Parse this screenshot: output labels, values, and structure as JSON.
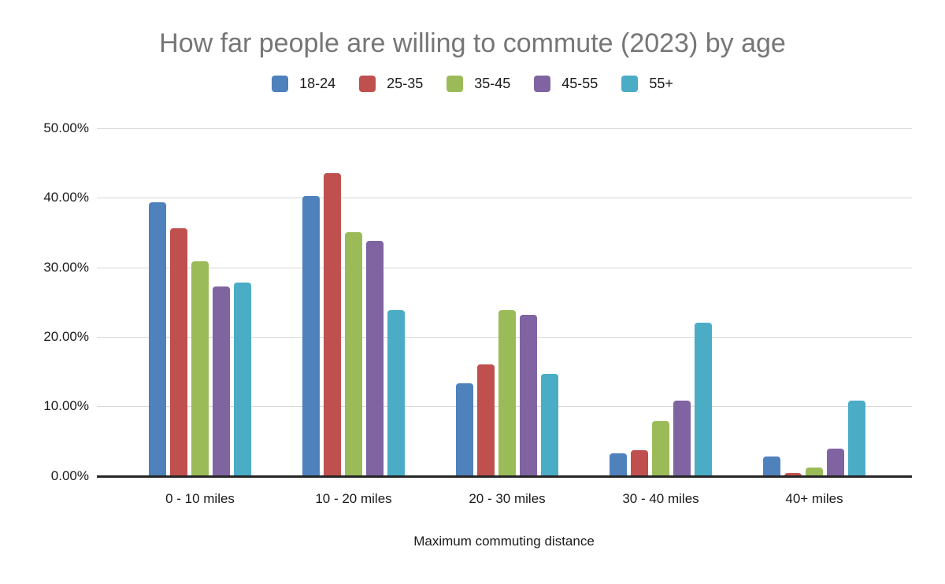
{
  "chart_data": {
    "type": "bar",
    "title": "How far people are willing to commute (2023) by age",
    "xlabel": "Maximum commuting distance",
    "ylabel": "",
    "categories": [
      "0 - 10 miles",
      "10 - 20 miles",
      "20 - 30 miles",
      "30 - 40 miles",
      "40+ miles"
    ],
    "series": [
      {
        "name": "18-24",
        "color": "#4F81BD",
        "values": [
          39.4,
          40.3,
          13.4,
          3.3,
          2.8
        ]
      },
      {
        "name": "25-35",
        "color": "#C0504D",
        "values": [
          35.6,
          43.5,
          16.1,
          3.7,
          0.5
        ]
      },
      {
        "name": "35-45",
        "color": "#9BBB59",
        "values": [
          30.9,
          35.1,
          23.9,
          7.9,
          1.2
        ]
      },
      {
        "name": "45-55",
        "color": "#8064A2",
        "values": [
          27.3,
          33.8,
          23.2,
          10.9,
          4.0
        ]
      },
      {
        "name": "55+",
        "color": "#4BACC6",
        "values": [
          27.8,
          23.9,
          14.7,
          22.1,
          10.9
        ]
      }
    ],
    "ylim": [
      0,
      50
    ],
    "yticks": [
      {
        "value": 0,
        "label": "0.00%"
      },
      {
        "value": 10,
        "label": "10.00%"
      },
      {
        "value": 20,
        "label": "20.00%"
      },
      {
        "value": 30,
        "label": "30.00%"
      },
      {
        "value": 40,
        "label": "40.00%"
      },
      {
        "value": 50,
        "label": "50.00%"
      }
    ],
    "grid": true,
    "legend_position": "top",
    "colors": {
      "title_text": "#767676",
      "axis_text": "#1a1a1a",
      "gridline": "#d9d9d9",
      "baseline": "#262626",
      "background": "#ffffff"
    }
  }
}
